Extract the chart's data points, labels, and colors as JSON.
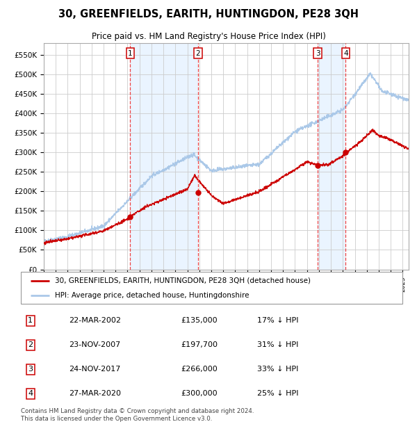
{
  "title": "30, GREENFIELDS, EARITH, HUNTINGDON, PE28 3QH",
  "subtitle": "Price paid vs. HM Land Registry's House Price Index (HPI)",
  "hpi_color": "#aac8e8",
  "price_color": "#cc0000",
  "sale_marker_color": "#cc0000",
  "bg_shading_color": "#ddeeff",
  "vline_color": "#ee4444",
  "grid_color": "#cccccc",
  "sales": [
    {
      "date_num": 2002.22,
      "price": 135000,
      "label": "1"
    },
    {
      "date_num": 2007.895,
      "price": 197700,
      "label": "2"
    },
    {
      "date_num": 2017.895,
      "price": 266000,
      "label": "3"
    },
    {
      "date_num": 2020.24,
      "price": 300000,
      "label": "4"
    }
  ],
  "sale_dates_str": [
    "22-MAR-2002",
    "23-NOV-2007",
    "24-NOV-2017",
    "27-MAR-2020"
  ],
  "sale_prices_str": [
    "£135,000",
    "£197,700",
    "£266,000",
    "£300,000"
  ],
  "sale_pct_str": [
    "17% ↓ HPI",
    "31% ↓ HPI",
    "33% ↓ HPI",
    "25% ↓ HPI"
  ],
  "xmin": 1995.0,
  "xmax": 2025.5,
  "ymin": 0,
  "ymax": 580000,
  "yticks": [
    0,
    50000,
    100000,
    150000,
    200000,
    250000,
    300000,
    350000,
    400000,
    450000,
    500000,
    550000
  ],
  "ytick_labels": [
    "£0",
    "£50K",
    "£100K",
    "£150K",
    "£200K",
    "£250K",
    "£300K",
    "£350K",
    "£400K",
    "£450K",
    "£500K",
    "£550K"
  ],
  "footnote_line1": "Contains HM Land Registry data © Crown copyright and database right 2024.",
  "footnote_line2": "This data is licensed under the Open Government Licence v3.0.",
  "legend_price_label": "30, GREENFIELDS, EARITH, HUNTINGDON, PE28 3QH (detached house)",
  "legend_hpi_label": "HPI: Average price, detached house, Huntingdonshire"
}
